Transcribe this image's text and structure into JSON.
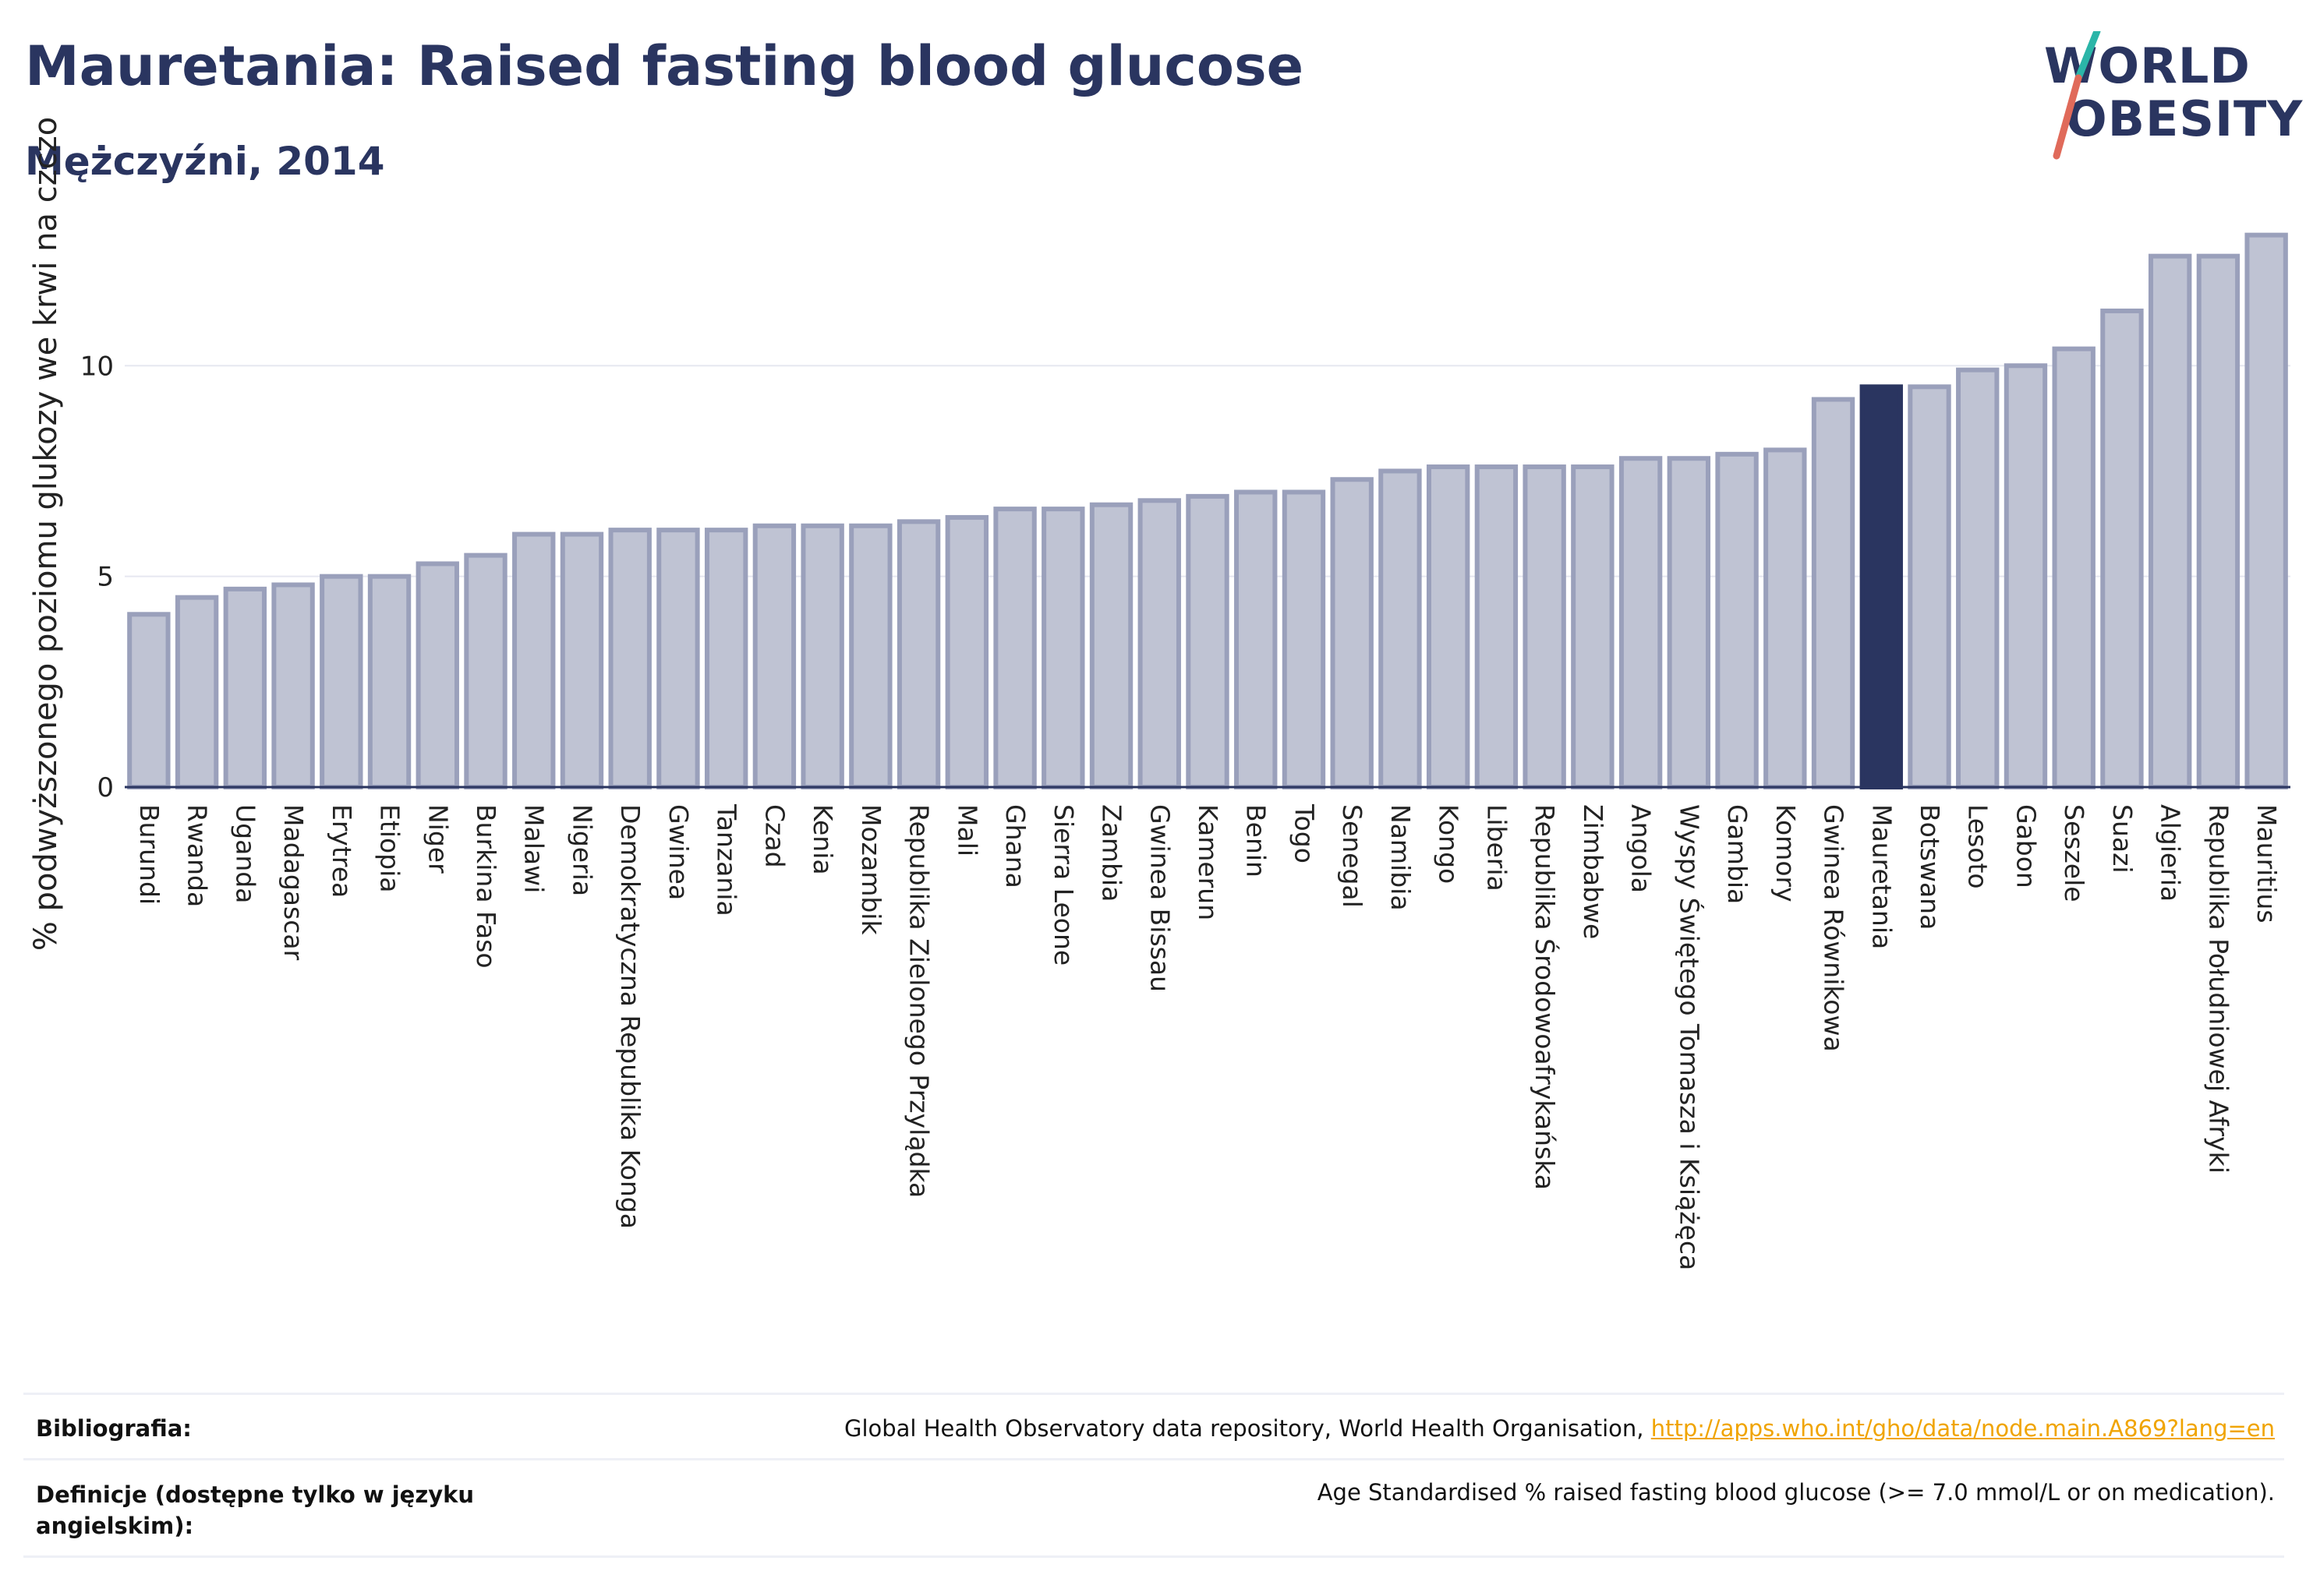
{
  "header": {
    "title": "Mauretania: Raised fasting blood glucose",
    "subtitle": "Mężczyźni, 2014"
  },
  "logo": {
    "line1": "WORLD",
    "line2": "OBESITY",
    "colors": {
      "teal": "#2bb5a8",
      "coral": "#e06a5a",
      "navy": "#2a3560"
    }
  },
  "chart_data": {
    "type": "bar",
    "ylabel": "% podwyższonego poziomu glukozy we krwi na czczo",
    "ylim": [
      0,
      13.5
    ],
    "yticks": [
      0,
      5,
      10
    ],
    "highlight": "Mauretania",
    "colors": {
      "bar": "#bfc3d3",
      "bar_border": "#9aa0bb",
      "highlight": "#2a3560"
    },
    "categories": [
      "Burundi",
      "Rwanda",
      "Uganda",
      "Madagascar",
      "Erytrea",
      "Etiopia",
      "Niger",
      "Burkina Faso",
      "Malawi",
      "Nigeria",
      "Demokratyczna Republika Konga",
      "Gwinea",
      "Tanzania",
      "Czad",
      "Kenia",
      "Mozambik",
      "Republika Zielonego Przylądka",
      "Mali",
      "Ghana",
      "Sierra Leone",
      "Zambia",
      "Gwinea Bissau",
      "Kamerun",
      "Benin",
      "Togo",
      "Senegal",
      "Namibia",
      "Kongo",
      "Liberia",
      "Republika Środowoafrykańska",
      "Zimbabwe",
      "Angola",
      "Wyspy Świętego Tomasza i Książęca",
      "Gambia",
      "Komory",
      "Gwinea Równikowa",
      "Mauretania",
      "Botswana",
      "Lesoto",
      "Gabon",
      "Seszele",
      "Suazi",
      "Algieria",
      "Republika Południowej Afryki",
      "Mauritius"
    ],
    "values": [
      4.1,
      4.5,
      4.7,
      4.8,
      5.0,
      5.0,
      5.3,
      5.5,
      6.0,
      6.0,
      6.1,
      6.1,
      6.1,
      6.2,
      6.2,
      6.2,
      6.3,
      6.4,
      6.6,
      6.6,
      6.7,
      6.8,
      6.9,
      7.0,
      7.0,
      7.3,
      7.5,
      7.6,
      7.6,
      7.6,
      7.6,
      7.8,
      7.8,
      7.9,
      8.0,
      9.2,
      9.5,
      9.5,
      9.9,
      10.0,
      10.4,
      11.3,
      12.6,
      12.6,
      13.1
    ]
  },
  "footer": {
    "source_label": "Bibliografia:",
    "source_text": "Global Health Observatory data repository, World Health Organisation, ",
    "source_link": "http://apps.who.int/gho/data/node.main.A869?lang=en",
    "definition_label": "Definicje (dostępne tylko w języku angielskim):",
    "definition_text": "Age Standardised % raised fasting blood glucose (>= 7.0 mmol/L or on medication)."
  }
}
